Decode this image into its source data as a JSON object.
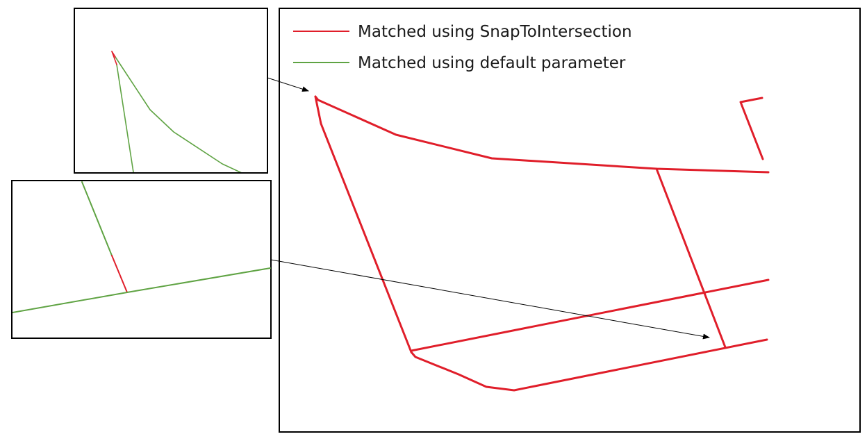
{
  "legend": {
    "items": [
      {
        "label": "Matched using SnapToIntersection",
        "color": "#e01e2a"
      },
      {
        "label": "Matched using default parameter",
        "color": "#5fa343"
      }
    ]
  },
  "colors": {
    "snap_route": "#e01e2a",
    "default_route": "#5fa343",
    "frame": "#000000",
    "arrow": "#000000"
  }
}
